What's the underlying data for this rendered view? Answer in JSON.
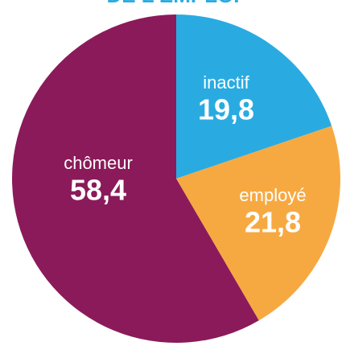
{
  "chart_data": {
    "type": "pie",
    "title": "DE L'EMPLOI",
    "categories": [
      "inactif",
      "employé",
      "chômeur"
    ],
    "values": [
      19.8,
      21.8,
      58.4
    ],
    "value_labels": [
      "19,8",
      "21,8",
      "58,4"
    ],
    "colors": [
      "#29abe2",
      "#f7a941",
      "#8b1a5a"
    ]
  }
}
